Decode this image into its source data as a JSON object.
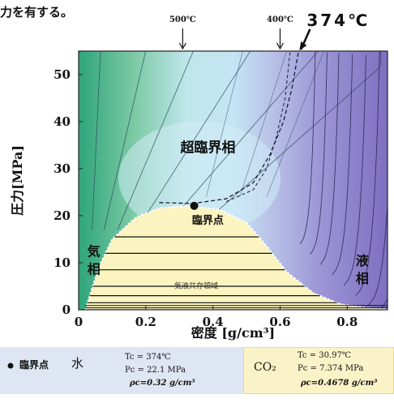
{
  "top_text": "力を有する。",
  "chart_data": {
    "type": "line",
    "xlabel": "密度 [g/cm³]",
    "ylabel": "圧力[MPa]",
    "xlim": [
      0,
      0.92
    ],
    "ylim": [
      0,
      55
    ],
    "x_ticks": [
      {
        "value": 0,
        "label": "0"
      },
      {
        "value": 0.2,
        "label": "0.2"
      },
      {
        "value": 0.4,
        "label": "0.4"
      },
      {
        "value": 0.6,
        "label": "0.6"
      },
      {
        "value": 0.8,
        "label": "0.8"
      }
    ],
    "y_ticks": [
      {
        "value": 0,
        "label": "0"
      },
      {
        "value": 10,
        "label": "10"
      },
      {
        "value": 20,
        "label": "20"
      },
      {
        "value": 30,
        "label": "30"
      },
      {
        "value": 40,
        "label": "40"
      },
      {
        "value": 50,
        "label": "50"
      }
    ],
    "critical_point": {
      "x": 0.32,
      "y": 22.1
    },
    "coexistence_boundary": [
      [
        0.02,
        0
      ],
      [
        0.06,
        9
      ],
      [
        0.1,
        15
      ],
      [
        0.17,
        19.6
      ],
      [
        0.24,
        21.6
      ],
      [
        0.32,
        22.1
      ],
      [
        0.42,
        21.3
      ],
      [
        0.5,
        18.5
      ],
      [
        0.56,
        13.5
      ],
      [
        0.62,
        8
      ],
      [
        0.7,
        3.5
      ],
      [
        0.78,
        1.2
      ],
      [
        0.86,
        0.4
      ],
      [
        0.92,
        0.2
      ]
    ],
    "isotherm_labels": [
      {
        "label": "500℃",
        "x": 0.31
      },
      {
        "label": "400℃",
        "x": 0.6
      },
      {
        "label": "374℃",
        "x": 0.66
      }
    ],
    "tie_line_pressures": [
      1.5,
      3,
      5,
      8.5,
      12,
      15.5
    ],
    "region_labels": {
      "supercritical": "超臨界相",
      "critical_point": "臨界点",
      "gas": "気\n相",
      "liquid": "液\n相",
      "coexistence": "気液共存領域"
    }
  },
  "legend": {
    "marker_label": "臨界点",
    "water_label": "水",
    "water_tc": "Tc = 374℃",
    "water_pc": "Pc = 22.1 MPa",
    "water_rho": "ρc=0.32 g/cm³",
    "co2_label": "CO₂",
    "co2_tc": "Tc = 30.97℃",
    "co2_pc": "Pc = 7.374 MPa",
    "co2_rho": "ρc=0.4678 g/cm³"
  },
  "colors": {
    "gas_green": "#4fb493",
    "supercritical_blue": "#bfe3f3",
    "liquid_purple": "#8a7fc8",
    "coexistence_yellow": "#fbf4c0"
  }
}
